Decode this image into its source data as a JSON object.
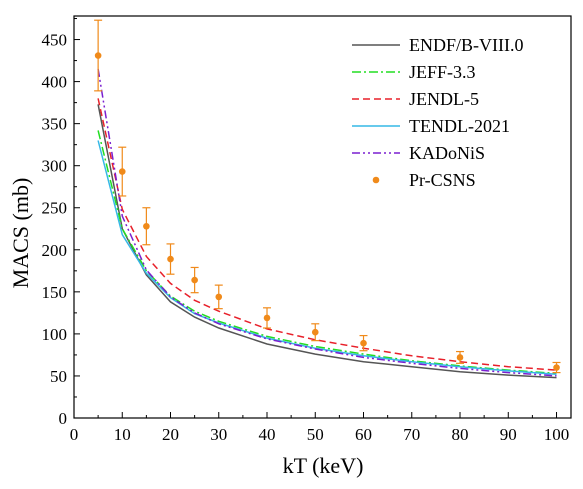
{
  "chart_data": {
    "type": "line",
    "xlabel": "kT (keV)",
    "ylabel": "MACS (mb)",
    "xlim": [
      0,
      103
    ],
    "ylim": [
      0,
      478
    ],
    "xticks": [
      0,
      10,
      20,
      30,
      40,
      50,
      60,
      70,
      80,
      90,
      100
    ],
    "yticks": [
      0,
      50,
      100,
      150,
      200,
      250,
      300,
      350,
      400,
      450
    ],
    "legend_position": "top-right",
    "grid": false,
    "x": [
      5,
      10,
      15,
      20,
      25,
      30,
      40,
      50,
      60,
      70,
      80,
      90,
      100
    ],
    "series": [
      {
        "name": "ENDF/B-VIII.0",
        "color": "#555555",
        "dash": "solid",
        "values": [
          373,
          225,
          170,
          138,
          120,
          107,
          88,
          76,
          67,
          61,
          55,
          51,
          48
        ]
      },
      {
        "name": "JEFF-3.3",
        "color": "#22dd22",
        "dash": "dashdot",
        "values": [
          342,
          225,
          175,
          145,
          127,
          115,
          97,
          85,
          76,
          68,
          62,
          57,
          53
        ]
      },
      {
        "name": "JENDL-5",
        "color": "#e8202a",
        "dash": "dash",
        "values": [
          380,
          248,
          192,
          160,
          140,
          127,
          106,
          93,
          83,
          74,
          67,
          61,
          57
        ]
      },
      {
        "name": "TENDL-2021",
        "color": "#35b8e6",
        "dash": "solid",
        "values": [
          330,
          218,
          172,
          143,
          124,
          113,
          95,
          83,
          74,
          67,
          61,
          56,
          52
        ]
      },
      {
        "name": "KADoNiS",
        "color": "#7a1fd0",
        "dash": "dashdotdot",
        "values": [
          415,
          240,
          176,
          144,
          125,
          112,
          94,
          82,
          72,
          65,
          59,
          54,
          50
        ]
      }
    ],
    "experimental": {
      "name": "Pr-CSNS",
      "color": "#f08a1a",
      "x": [
        5,
        10,
        15,
        20,
        25,
        30,
        40,
        50,
        60,
        80,
        100
      ],
      "y": [
        431,
        293,
        228,
        189,
        164,
        144,
        119,
        102,
        89,
        72,
        60
      ],
      "error": [
        42,
        29,
        22,
        18,
        15,
        14,
        12,
        10,
        9,
        7,
        6
      ]
    }
  }
}
